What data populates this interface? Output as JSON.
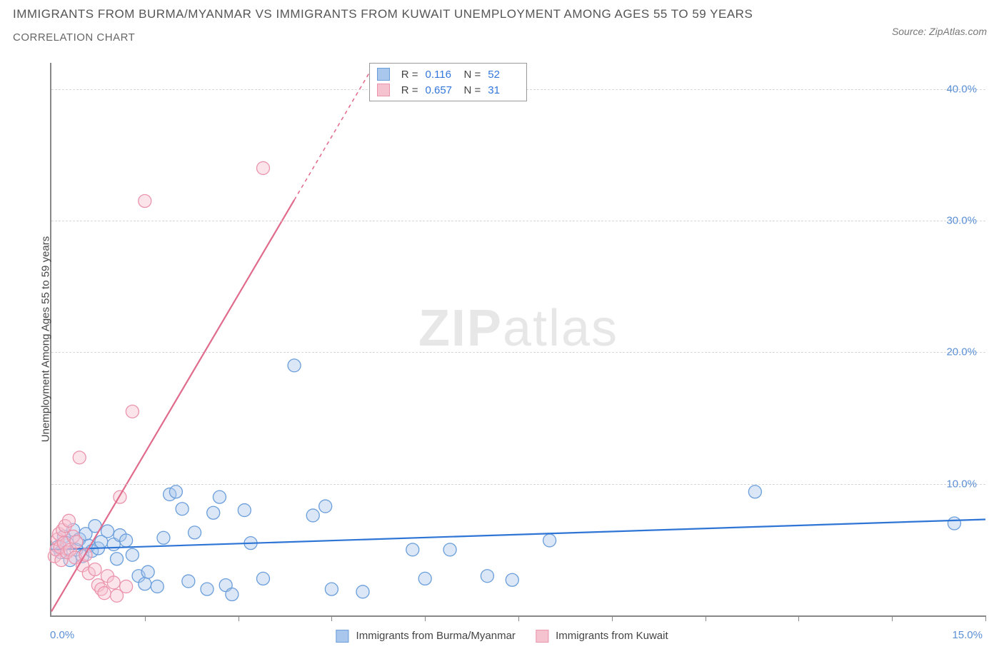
{
  "title": "IMMIGRANTS FROM BURMA/MYANMAR VS IMMIGRANTS FROM KUWAIT UNEMPLOYMENT AMONG AGES 55 TO 59 YEARS",
  "subtitle": "CORRELATION CHART",
  "source": "Source: ZipAtlas.com",
  "watermark_bold": "ZIP",
  "watermark_light": "atlas",
  "chart": {
    "type": "scatter",
    "background_color": "#ffffff",
    "grid_color": "#d8d8d8",
    "axis_color": "#888888",
    "ylabel": "Unemployment Among Ages 55 to 59 years",
    "label_fontsize": 15,
    "label_color": "#444444",
    "xlim": [
      0,
      15
    ],
    "ylim": [
      0,
      42
    ],
    "x_ticks": [
      0,
      1.5,
      3,
      4.5,
      6,
      7.5,
      9,
      10.5,
      12,
      13.5,
      15
    ],
    "y_ticks": [
      10,
      20,
      30,
      40
    ],
    "y_tick_labels": [
      "10.0%",
      "20.0%",
      "30.0%",
      "40.0%"
    ],
    "x_zero_label": "0.0%",
    "x_max_label": "15.0%",
    "tick_label_color": "#5b8fd6",
    "tick_label_fontsize": 15,
    "marker_radius": 9,
    "marker_opacity": 0.42,
    "line_width": 2.2,
    "series": [
      {
        "name": "Immigrants from Burma/Myanmar",
        "color_fill": "#a9c6ec",
        "color_stroke": "#6a9edb",
        "line_color": "#2e75d6",
        "r_value": "0.116",
        "n_value": "52",
        "trend": {
          "x1": 0,
          "y1": 5.0,
          "x2": 15,
          "y2": 7.3,
          "dashed_from_x": null
        },
        "points": [
          [
            0.1,
            5.2
          ],
          [
            0.15,
            4.8
          ],
          [
            0.2,
            6.0
          ],
          [
            0.25,
            5.5
          ],
          [
            0.3,
            4.2
          ],
          [
            0.35,
            6.5
          ],
          [
            0.4,
            5.0
          ],
          [
            0.45,
            5.8
          ],
          [
            0.5,
            4.5
          ],
          [
            0.55,
            6.2
          ],
          [
            0.6,
            5.3
          ],
          [
            0.65,
            4.9
          ],
          [
            0.7,
            6.8
          ],
          [
            0.75,
            5.1
          ],
          [
            0.8,
            5.6
          ],
          [
            0.9,
            6.4
          ],
          [
            1.0,
            5.4
          ],
          [
            1.05,
            4.3
          ],
          [
            1.1,
            6.1
          ],
          [
            1.2,
            5.7
          ],
          [
            1.3,
            4.6
          ],
          [
            1.4,
            3.0
          ],
          [
            1.5,
            2.4
          ],
          [
            1.55,
            3.3
          ],
          [
            1.7,
            2.2
          ],
          [
            1.8,
            5.9
          ],
          [
            1.9,
            9.2
          ],
          [
            2.0,
            9.4
          ],
          [
            2.1,
            8.1
          ],
          [
            2.2,
            2.6
          ],
          [
            2.3,
            6.3
          ],
          [
            2.5,
            2.0
          ],
          [
            2.6,
            7.8
          ],
          [
            2.7,
            9.0
          ],
          [
            2.8,
            2.3
          ],
          [
            2.9,
            1.6
          ],
          [
            3.1,
            8.0
          ],
          [
            3.2,
            5.5
          ],
          [
            3.4,
            2.8
          ],
          [
            3.9,
            19.0
          ],
          [
            4.2,
            7.6
          ],
          [
            4.4,
            8.3
          ],
          [
            4.5,
            2.0
          ],
          [
            5.0,
            1.8
          ],
          [
            5.8,
            5.0
          ],
          [
            6.0,
            2.8
          ],
          [
            6.4,
            5.0
          ],
          [
            7.0,
            3.0
          ],
          [
            7.4,
            2.7
          ],
          [
            8.0,
            5.7
          ],
          [
            11.3,
            9.4
          ],
          [
            14.5,
            7.0
          ]
        ]
      },
      {
        "name": "Immigrants from Kuwait",
        "color_fill": "#f5c2cf",
        "color_stroke": "#eb94ac",
        "line_color": "#e16b8c",
        "r_value": "0.657",
        "n_value": "31",
        "trend": {
          "x1": 0,
          "y1": 0.3,
          "x2": 5.2,
          "y2": 42,
          "dashed_from_x": 3.9
        },
        "points": [
          [
            0.05,
            4.5
          ],
          [
            0.08,
            5.0
          ],
          [
            0.1,
            5.8
          ],
          [
            0.12,
            6.2
          ],
          [
            0.14,
            5.2
          ],
          [
            0.16,
            4.2
          ],
          [
            0.18,
            6.5
          ],
          [
            0.2,
            5.5
          ],
          [
            0.22,
            6.8
          ],
          [
            0.25,
            4.8
          ],
          [
            0.28,
            7.2
          ],
          [
            0.3,
            5.0
          ],
          [
            0.35,
            6.0
          ],
          [
            0.38,
            4.4
          ],
          [
            0.4,
            5.6
          ],
          [
            0.45,
            12.0
          ],
          [
            0.5,
            3.8
          ],
          [
            0.55,
            4.6
          ],
          [
            0.6,
            3.2
          ],
          [
            0.7,
            3.5
          ],
          [
            0.75,
            2.3
          ],
          [
            0.8,
            2.0
          ],
          [
            0.85,
            1.7
          ],
          [
            0.9,
            3.0
          ],
          [
            1.0,
            2.5
          ],
          [
            1.05,
            1.5
          ],
          [
            1.1,
            9.0
          ],
          [
            1.2,
            2.2
          ],
          [
            1.3,
            15.5
          ],
          [
            1.5,
            31.5
          ],
          [
            3.4,
            34.0
          ]
        ]
      }
    ],
    "legend": {
      "items": [
        {
          "label": "Immigrants from Burma/Myanmar",
          "fill": "#a9c6ec",
          "stroke": "#6a9edb"
        },
        {
          "label": "Immigrants from Kuwait",
          "fill": "#f5c2cf",
          "stroke": "#eb94ac"
        }
      ]
    },
    "stats_box": {
      "r_label": "R =",
      "n_label": "N ="
    }
  }
}
